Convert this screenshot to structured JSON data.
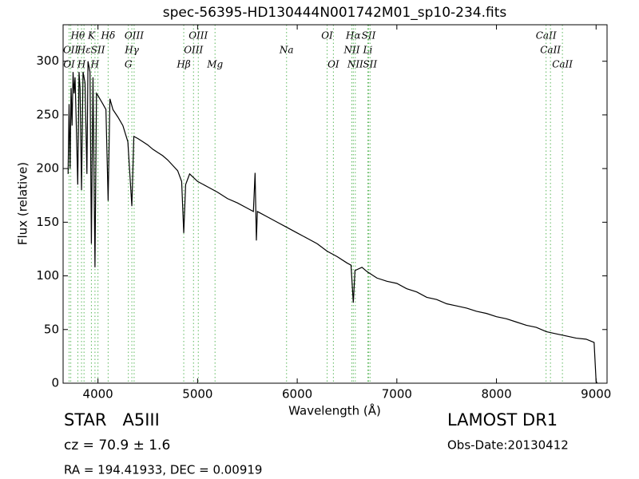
{
  "chart_data": {
    "type": "line",
    "title": "spec-56395-HD130444N001742M01_sp10-234.fits",
    "x_label": "Wavelength (Å)",
    "y_label": "Flux (relative)",
    "xlim": [
      3650,
      9110
    ],
    "ylim": [
      0,
      334
    ],
    "xticks": [
      4000,
      5000,
      6000,
      7000,
      8000,
      9000
    ],
    "yticks": [
      0,
      50,
      100,
      150,
      200,
      250,
      300
    ],
    "x": [
      3700,
      3710,
      3720,
      3730,
      3740,
      3750,
      3760,
      3770,
      3780,
      3797,
      3810,
      3820,
      3835,
      3850,
      3870,
      3889,
      3900,
      3920,
      3934,
      3950,
      3970,
      3985,
      4000,
      4050,
      4080,
      4102,
      4120,
      4150,
      4200,
      4250,
      4300,
      4340,
      4360,
      4400,
      4450,
      4500,
      4550,
      4600,
      4650,
      4700,
      4750,
      4800,
      4840,
      4861,
      4880,
      4920,
      5000,
      5100,
      5200,
      5300,
      5400,
      5500,
      5560,
      5577,
      5590,
      5600,
      5700,
      5800,
      5900,
      6000,
      6100,
      6200,
      6300,
      6400,
      6500,
      6540,
      6563,
      6580,
      6650,
      6700,
      6800,
      6900,
      7000,
      7100,
      7200,
      7300,
      7400,
      7500,
      7600,
      7700,
      7800,
      7900,
      8000,
      8100,
      8200,
      8300,
      8400,
      8500,
      8600,
      8700,
      8800,
      8900,
      8980,
      9000,
      9010
    ],
    "series": [
      {
        "color": "#000000",
        "values": [
          195,
          260,
          200,
          275,
          240,
          290,
          270,
          285,
          250,
          185,
          290,
          275,
          180,
          290,
          280,
          195,
          300,
          290,
          130,
          285,
          108,
          270,
          268,
          260,
          255,
          170,
          265,
          255,
          248,
          240,
          225,
          165,
          230,
          228,
          225,
          222,
          218,
          215,
          212,
          208,
          203,
          198,
          188,
          140,
          185,
          195,
          188,
          183,
          178,
          172,
          168,
          163,
          160,
          196,
          133,
          160,
          155,
          150,
          145,
          140,
          135,
          130,
          123,
          118,
          112,
          110,
          75,
          105,
          108,
          104,
          98,
          95,
          93,
          88,
          85,
          80,
          78,
          74,
          72,
          70,
          67,
          65,
          62,
          60,
          57,
          54,
          52,
          48,
          46,
          44,
          42,
          41,
          38,
          2,
          0
        ]
      }
    ],
    "line_marker_color": "#5cb85c",
    "line_labels": [
      [
        {
          "label": "Hθ",
          "x": 3798
        },
        {
          "label": "K",
          "x": 3934
        },
        {
          "label": "Hδ",
          "x": 4102
        },
        {
          "label": "OIII",
          "x": 4363
        },
        {
          "label": "OIII",
          "x": 5007
        },
        {
          "label": "OI",
          "x": 6300
        },
        {
          "label": "Hα",
          "x": 6563
        },
        {
          "label": "SII",
          "x": 6717
        },
        {
          "label": "CaII",
          "x": 8498
        }
      ],
      [
        {
          "label": "OII",
          "x": 3727
        },
        {
          "label": "Hε",
          "x": 3860
        },
        {
          "label": "SII",
          "x": 4000
        },
        {
          "label": "Hγ",
          "x": 4340
        },
        {
          "label": "OIII",
          "x": 4959
        },
        {
          "label": "Na",
          "x": 5893
        },
        {
          "label": "NII",
          "x": 6548
        },
        {
          "label": "Li",
          "x": 6708
        },
        {
          "label": "CaII",
          "x": 8542
        }
      ],
      [
        {
          "label": "OI",
          "x": 3710
        },
        {
          "label": "H",
          "x": 3835
        },
        {
          "label": "H",
          "x": 3970
        },
        {
          "label": "G",
          "x": 4305
        },
        {
          "label": "Hβ",
          "x": 4861
        },
        {
          "label": "Mg",
          "x": 5175
        },
        {
          "label": "OI",
          "x": 6363
        },
        {
          "label": "NII",
          "x": 6583
        },
        {
          "label": "SII",
          "x": 6731
        },
        {
          "label": "CaII",
          "x": 8662
        }
      ]
    ],
    "annotations": [
      "STAR   A5III",
      "cz = 70.9 ± 1.6",
      "RA = 194.41933, DEC = 0.00919",
      "LAMOST DR1",
      "Obs-Date:20130412"
    ]
  }
}
